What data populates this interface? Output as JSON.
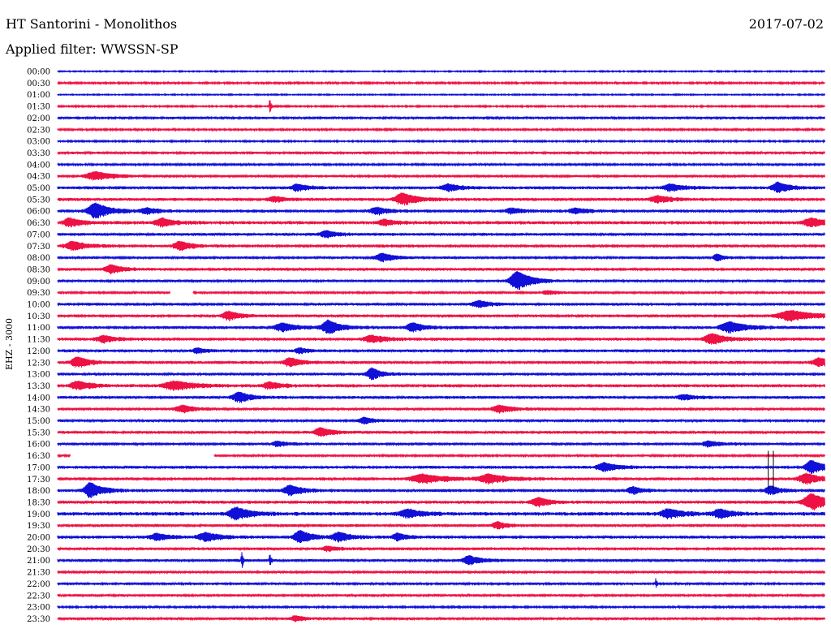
{
  "header": {
    "station": "HT Santorini - Monolithos",
    "date": "2017-07-02",
    "filter": "Applied filter: WWSSN-SP"
  },
  "chart_data": {
    "type": "line",
    "ylabel": "EHZ - 3000",
    "time_labels": [
      "00:00",
      "00:30",
      "01:00",
      "01:30",
      "02:00",
      "02:30",
      "03:00",
      "03:30",
      "04:00",
      "04:30",
      "05:00",
      "05:30",
      "06:00",
      "06:30",
      "07:00",
      "07:30",
      "08:00",
      "08:30",
      "09:00",
      "09:30",
      "10:00",
      "10:30",
      "11:00",
      "11:30",
      "12:00",
      "12:30",
      "13:00",
      "13:30",
      "14:00",
      "14:30",
      "15:00",
      "15:30",
      "16:00",
      "16:30",
      "17:00",
      "17:30",
      "18:00",
      "18:30",
      "19:00",
      "19:30",
      "20:00",
      "20:30",
      "21:00",
      "21:30",
      "22:00",
      "22:30",
      "23:00",
      "23:30"
    ],
    "trace_colors": [
      "#1010d8",
      "#ee1144"
    ],
    "minutes_per_line": 30,
    "rows_noise": [
      0.8,
      1.2,
      0.8,
      1.0,
      1.5,
      1.2,
      1.0,
      1.5,
      1.3,
      1.4,
      1.8,
      2.0,
      2.0,
      2.2,
      1.8,
      2.0,
      1.6,
      1.8,
      1.6,
      1.4,
      1.8,
      1.8,
      2.0,
      2.0,
      1.8,
      2.0,
      1.8,
      2.0,
      1.8,
      1.8,
      1.6,
      1.8,
      1.8,
      1.4,
      1.8,
      2.0,
      2.0,
      2.0,
      2.4,
      1.8,
      2.0,
      1.8,
      1.8,
      1.6,
      1.4,
      1.6,
      1.2,
      1.6
    ],
    "events": [
      [],
      [],
      [],
      [
        {
          "t": 8.3,
          "a": 10,
          "w": 0.05
        }
      ],
      [],
      [],
      [],
      [],
      [],
      [
        {
          "t": 1.5,
          "a": 5,
          "w": 0.8
        }
      ],
      [
        {
          "t": 9.4,
          "a": 4,
          "w": 0.5
        },
        {
          "t": 15.3,
          "a": 4,
          "w": 0.6
        },
        {
          "t": 24.0,
          "a": 4,
          "w": 0.6
        },
        {
          "t": 28.2,
          "a": 6,
          "w": 0.5
        }
      ],
      [
        {
          "t": 8.5,
          "a": 3,
          "w": 0.5
        },
        {
          "t": 13.5,
          "a": 7,
          "w": 0.6
        },
        {
          "t": 23.5,
          "a": 4,
          "w": 0.6
        }
      ],
      [
        {
          "t": 1.5,
          "a": 9,
          "w": 0.6
        },
        {
          "t": 3.5,
          "a": 3,
          "w": 0.5
        },
        {
          "t": 12.5,
          "a": 4,
          "w": 0.5
        },
        {
          "t": 17.8,
          "a": 3,
          "w": 0.5
        },
        {
          "t": 20.3,
          "a": 3,
          "w": 0.5
        }
      ],
      [
        {
          "t": 0.5,
          "a": 5,
          "w": 0.5
        },
        {
          "t": 4.1,
          "a": 5,
          "w": 0.5
        },
        {
          "t": 12.8,
          "a": 3,
          "w": 0.5
        },
        {
          "t": 29.5,
          "a": 5,
          "w": 0.6
        }
      ],
      [
        {
          "t": 10.5,
          "a": 4,
          "w": 0.5
        }
      ],
      [
        {
          "t": 0.6,
          "a": 5,
          "w": 0.6
        },
        {
          "t": 4.8,
          "a": 5,
          "w": 0.5
        }
      ],
      [
        {
          "t": 12.7,
          "a": 5,
          "w": 0.5
        },
        {
          "t": 25.8,
          "a": 4,
          "w": 0.3
        }
      ],
      [
        {
          "t": 2.1,
          "a": 5,
          "w": 0.5
        }
      ],
      [
        {
          "t": 18.0,
          "a": 11,
          "w": 0.6
        }
      ],
      [
        {
          "t": 19.2,
          "a": 2,
          "w": 0.5
        }
      ],
      [
        {
          "t": 16.5,
          "a": 4,
          "w": 0.5
        }
      ],
      [
        {
          "t": 6.7,
          "a": 5,
          "w": 0.5
        },
        {
          "t": 28.7,
          "a": 6,
          "w": 1.0
        }
      ],
      [
        {
          "t": 8.8,
          "a": 5,
          "w": 0.6
        },
        {
          "t": 10.6,
          "a": 8,
          "w": 0.5
        },
        {
          "t": 13.9,
          "a": 5,
          "w": 0.5
        },
        {
          "t": 26.3,
          "a": 6,
          "w": 0.7
        }
      ],
      [
        {
          "t": 1.8,
          "a": 4,
          "w": 0.5
        },
        {
          "t": 12.3,
          "a": 4,
          "w": 0.6
        },
        {
          "t": 25.6,
          "a": 6,
          "w": 0.6
        }
      ],
      [
        {
          "t": 5.5,
          "a": 3,
          "w": 0.4
        },
        {
          "t": 9.5,
          "a": 3,
          "w": 0.4
        }
      ],
      [
        {
          "t": 0.8,
          "a": 6,
          "w": 0.5
        },
        {
          "t": 9.1,
          "a": 5,
          "w": 0.5
        },
        {
          "t": 29.8,
          "a": 5,
          "w": 0.5
        }
      ],
      [
        {
          "t": 12.3,
          "a": 7,
          "w": 0.4
        }
      ],
      [
        {
          "t": 0.8,
          "a": 5,
          "w": 0.6
        },
        {
          "t": 4.6,
          "a": 5,
          "w": 0.9
        },
        {
          "t": 8.3,
          "a": 4,
          "w": 0.5
        }
      ],
      [
        {
          "t": 7.1,
          "a": 6,
          "w": 0.5
        },
        {
          "t": 24.5,
          "a": 3,
          "w": 0.5
        }
      ],
      [
        {
          "t": 4.9,
          "a": 4,
          "w": 0.5
        },
        {
          "t": 17.3,
          "a": 4,
          "w": 0.6
        }
      ],
      [
        {
          "t": 12.0,
          "a": 4,
          "w": 0.4
        }
      ],
      [
        {
          "t": 10.3,
          "a": 5,
          "w": 0.5
        }
      ],
      [
        {
          "t": 8.6,
          "a": 3,
          "w": 0.4
        },
        {
          "t": 25.5,
          "a": 3,
          "w": 0.5
        }
      ],
      [],
      [
        {
          "t": 21.4,
          "a": 5,
          "w": 0.6
        },
        {
          "t": 29.5,
          "a": 8,
          "w": 0.5
        }
      ],
      [
        {
          "t": 14.3,
          "a": 5,
          "w": 0.9
        },
        {
          "t": 16.9,
          "a": 5,
          "w": 0.8
        },
        {
          "t": 29.3,
          "a": 6,
          "w": 0.6
        }
      ],
      [
        {
          "t": 1.3,
          "a": 9,
          "w": 0.5
        },
        {
          "t": 9.1,
          "a": 6,
          "w": 0.5
        },
        {
          "t": 22.5,
          "a": 4,
          "w": 0.4
        },
        {
          "t": 27.9,
          "a": 5,
          "w": 0.4
        }
      ],
      [
        {
          "t": 18.8,
          "a": 5,
          "w": 0.5
        },
        {
          "t": 29.5,
          "a": 10,
          "w": 0.6
        }
      ],
      [
        {
          "t": 7.0,
          "a": 7,
          "w": 0.6
        },
        {
          "t": 13.7,
          "a": 5,
          "w": 0.6
        },
        {
          "t": 23.9,
          "a": 5,
          "w": 0.6
        },
        {
          "t": 25.9,
          "a": 5,
          "w": 0.5
        }
      ],
      [
        {
          "t": 17.2,
          "a": 4,
          "w": 0.4
        }
      ],
      [
        {
          "t": 3.9,
          "a": 4,
          "w": 0.5
        },
        {
          "t": 5.8,
          "a": 5,
          "w": 0.6
        },
        {
          "t": 9.5,
          "a": 7,
          "w": 0.5
        },
        {
          "t": 11.0,
          "a": 5,
          "w": 0.5
        },
        {
          "t": 13.3,
          "a": 4,
          "w": 0.4
        }
      ],
      [
        {
          "t": 10.6,
          "a": 3,
          "w": 0.4
        }
      ],
      [
        {
          "t": 7.2,
          "a": 11,
          "w": 0.05
        },
        {
          "t": 8.3,
          "a": 8,
          "w": 0.05
        },
        {
          "t": 16.1,
          "a": 5,
          "w": 0.5
        }
      ],
      [],
      [
        {
          "t": 23.4,
          "a": 6,
          "w": 0.05
        }
      ],
      [],
      [],
      [
        {
          "t": 9.3,
          "a": 3,
          "w": 0.4
        }
      ]
    ],
    "gaps": [
      {
        "row": 19,
        "start": 4.4,
        "end": 5.3
      },
      {
        "row": 33,
        "start": 0.5,
        "end": 6.1
      }
    ],
    "special_marks": [
      {
        "t": 27.8,
        "row_from": 33,
        "row_to": 36
      },
      {
        "t": 28.0,
        "row_from": 33,
        "row_to": 36
      }
    ]
  }
}
